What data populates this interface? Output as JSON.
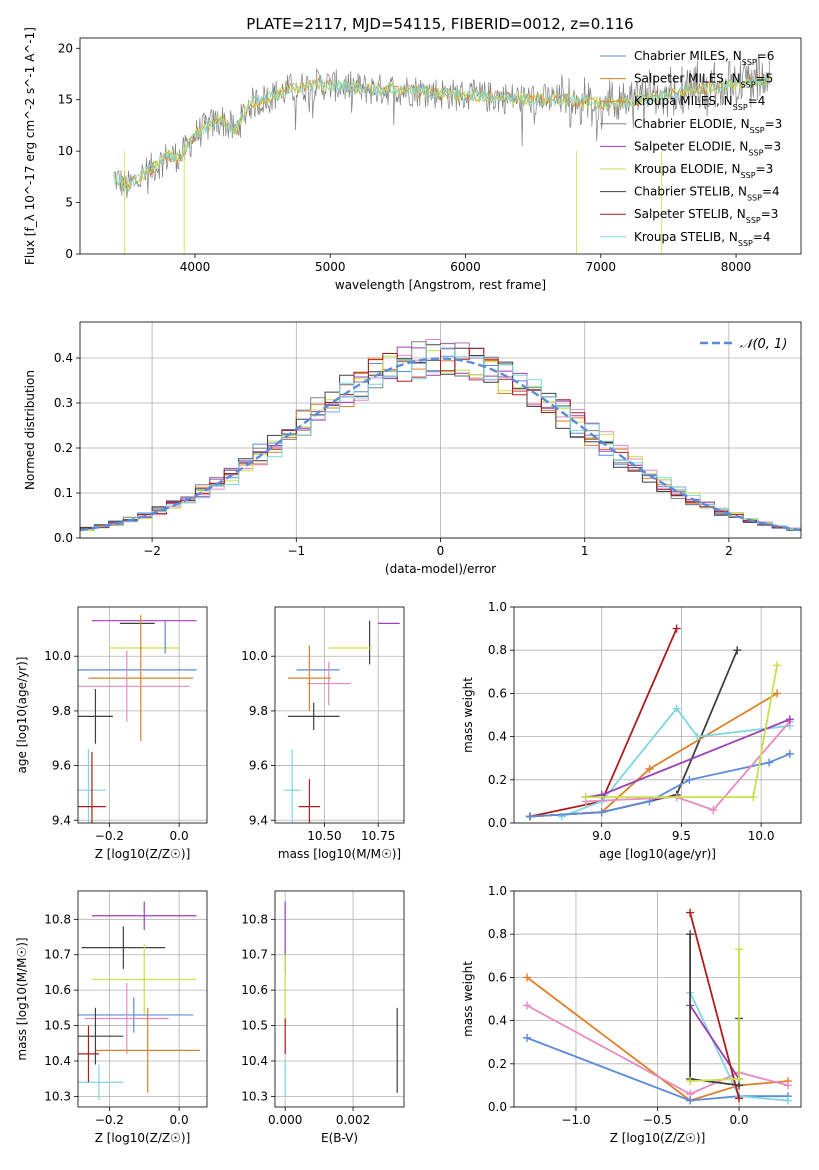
{
  "figure_title": "PLATE=2117, MJD=54115, FIBERID=0012, z=0.116",
  "series_legend": [
    {
      "label": "Chabrier MILES, N_SSP=6",
      "color": "#5b8bd9"
    },
    {
      "label": "Salpeter MILES, N_SSP=5",
      "color": "#e07f2a"
    },
    {
      "label": "Kroupa MILES, N_SSP=4",
      "color": "#e07f2a"
    },
    {
      "label": "Chabrier ELODIE, N_SSP=3",
      "color": "#808080"
    },
    {
      "label": "Salpeter ELODIE, N_SSP=3",
      "color": "#9b3fb6"
    },
    {
      "label": "Kroupa ELODIE, N_SSP=3",
      "color": "#c8e04a"
    },
    {
      "label": "Chabrier STELIB, N_SSP=4",
      "color": "#404040"
    },
    {
      "label": "Salpeter STELIB, N_SSP=3",
      "color": "#b01c1c"
    },
    {
      "label": "Kroupa STELIB, N_SSP=4",
      "color": "#7ed6e0"
    }
  ],
  "chart_data": [
    {
      "id": "spectrum",
      "type": "line",
      "title": "PLATE=2117, MJD=54115, FIBERID=0012, z=0.116",
      "xlabel": "wavelength [Angstrom, rest frame]",
      "ylabel": "Flux [f_λ 10^-17 erg cm^-2 s^-1 A^-1]",
      "xlim": [
        3150,
        8480
      ],
      "ylim": [
        0,
        21
      ],
      "xticks": [
        "4000",
        "5000",
        "6000",
        "7000",
        "8000"
      ],
      "yticks": [
        "0",
        "5",
        "10",
        "15",
        "20"
      ],
      "grid": false,
      "legend": "top-right",
      "continuum": {
        "x": [
          3400,
          3500,
          3600,
          3700,
          3800,
          3900,
          4000,
          4100,
          4200,
          4300,
          4400,
          4500,
          4700,
          4900,
          5100,
          5300,
          5500,
          5700,
          5900,
          6100,
          6300,
          6500,
          6700,
          6900,
          7100,
          7300,
          7500,
          7700,
          7900,
          8100,
          8250
        ],
        "y": [
          7.5,
          6.5,
          7.5,
          8.5,
          9.5,
          9.5,
          11.5,
          12.5,
          13.0,
          12.0,
          14.5,
          15.0,
          16.0,
          16.5,
          16.3,
          16.0,
          16.0,
          15.8,
          15.5,
          15.3,
          15.2,
          15.0,
          15.0,
          14.8,
          14.5,
          15.0,
          15.5,
          16.0,
          16.3,
          16.8,
          17.0
        ]
      }
    },
    {
      "id": "residual-hist",
      "type": "histogram",
      "xlabel": "(data-model)/error",
      "ylabel": "Normed distribution",
      "xlim": [
        -2.5,
        2.5
      ],
      "ylim": [
        0,
        0.48
      ],
      "xticks": [
        "−2",
        "−1",
        "0",
        "1",
        "2"
      ],
      "yticks": [
        "0.0",
        "0.1",
        "0.2",
        "0.3",
        "0.4"
      ],
      "grid": true,
      "legend_label": "𝒩(0, 1)",
      "legend": "top-right",
      "bin_width": 0.1,
      "gaussian": {
        "mean": 0,
        "sigma": 1
      }
    },
    {
      "id": "age-vs-Z",
      "type": "errorbar",
      "xlabel": "Z [log10(Z/Z☉)]",
      "ylabel": "age  [log10(age/yr)]",
      "xlim": [
        -0.29,
        0.08
      ],
      "ylim": [
        9.39,
        10.18
      ],
      "xticks": [
        "−0.2",
        "0.0"
      ],
      "yticks": [
        "9.4",
        "9.6",
        "9.8",
        "10.0"
      ],
      "grid": true,
      "points": [
        {
          "x": -0.1,
          "y": 10.13,
          "xerr": 0.15,
          "yerr": 0.0,
          "c": "#9b3fb6"
        },
        {
          "x": -0.12,
          "y": 10.12,
          "xerr": 0.05,
          "yerr": 0.0,
          "c": "#404040"
        },
        {
          "x": -0.1,
          "y": 10.03,
          "xerr": 0.1,
          "yerr": 0.0,
          "c": "#c8e04a"
        },
        {
          "x": -0.15,
          "y": 9.95,
          "xerr": 0.2,
          "yerr": 0.0,
          "c": "#5b8bd9"
        },
        {
          "x": -0.04,
          "y": 10.07,
          "xerr": 0.0,
          "yerr": 0.06,
          "c": "#5b8bd9"
        },
        {
          "x": -0.11,
          "y": 9.92,
          "xerr": 0.15,
          "yerr": 0.23,
          "c": "#e07f2a"
        },
        {
          "x": -0.15,
          "y": 9.89,
          "xerr": 0.18,
          "yerr": 0.13,
          "c": "#e58ac2"
        },
        {
          "x": -0.24,
          "y": 9.78,
          "xerr": 0.05,
          "yerr": 0.1,
          "c": "#404040"
        },
        {
          "x": -0.26,
          "y": 9.51,
          "xerr": 0.05,
          "yerr": 0.15,
          "c": "#7ed6e0"
        },
        {
          "x": -0.25,
          "y": 9.45,
          "xerr": 0.04,
          "yerr": 0.2,
          "c": "#b01c1c"
        }
      ]
    },
    {
      "id": "age-vs-mass",
      "type": "errorbar",
      "xlabel": "mass [log10(M/M☉)]",
      "ylabel": "",
      "xlim": [
        10.27,
        10.87
      ],
      "ylim": [
        9.39,
        10.18
      ],
      "xticks": [
        "10.50",
        "10.75"
      ],
      "yticks": [
        "9.4",
        "9.6",
        "9.8",
        "10.0"
      ],
      "grid": true,
      "points": [
        {
          "x": 10.8,
          "y": 10.12,
          "xerr": 0.05,
          "yerr": 0.0,
          "c": "#9b3fb6"
        },
        {
          "x": 10.71,
          "y": 10.05,
          "xerr": 0.0,
          "yerr": 0.08,
          "c": "#404040"
        },
        {
          "x": 10.62,
          "y": 10.03,
          "xerr": 0.1,
          "yerr": 0.0,
          "c": "#c8e04a"
        },
        {
          "x": 10.47,
          "y": 9.95,
          "xerr": 0.1,
          "yerr": 0.0,
          "c": "#5b8bd9"
        },
        {
          "x": 10.52,
          "y": 9.9,
          "xerr": 0.1,
          "yerr": 0.08,
          "c": "#e58ac2"
        },
        {
          "x": 10.43,
          "y": 9.92,
          "xerr": 0.1,
          "yerr": 0.12,
          "c": "#e07f2a"
        },
        {
          "x": 10.45,
          "y": 9.78,
          "xerr": 0.12,
          "yerr": 0.05,
          "c": "#404040"
        },
        {
          "x": 10.35,
          "y": 9.51,
          "xerr": 0.04,
          "yerr": 0.15,
          "c": "#7ed6e0"
        },
        {
          "x": 10.43,
          "y": 9.45,
          "xerr": 0.05,
          "yerr": 0.1,
          "c": "#b01c1c"
        }
      ]
    },
    {
      "id": "mass-weight-vs-age",
      "type": "line",
      "xlabel": "age  [log10(age/yr)]",
      "ylabel": "mass weight",
      "xlim": [
        8.45,
        10.25
      ],
      "ylim": [
        0,
        1
      ],
      "xticks": [
        "9.0",
        "9.5",
        "10.0"
      ],
      "yticks": [
        "0.0",
        "0.2",
        "0.4",
        "0.6",
        "0.8",
        "1.0"
      ],
      "grid": true,
      "series": [
        {
          "x": [
            8.55,
            9.0,
            9.47
          ],
          "y": [
            0.03,
            0.1,
            0.9
          ],
          "c": "#b01c1c"
        },
        {
          "x": [
            8.55,
            9.0,
            9.47,
            9.85
          ],
          "y": [
            0.03,
            0.05,
            0.13,
            0.8
          ],
          "c": "#404040"
        },
        {
          "x": [
            8.55,
            9.0,
            9.3,
            10.1
          ],
          "y": [
            0.03,
            0.05,
            0.25,
            0.6
          ],
          "c": "#e07f2a"
        },
        {
          "x": [
            8.75,
            9.0,
            9.47,
            9.6,
            10.18
          ],
          "y": [
            0.03,
            0.1,
            0.53,
            0.4,
            0.45
          ],
          "c": "#7ed6e0"
        },
        {
          "x": [
            8.55,
            9.0,
            9.3,
            9.55,
            10.05,
            10.18
          ],
          "y": [
            0.03,
            0.05,
            0.1,
            0.2,
            0.28,
            0.32
          ],
          "c": "#5b8bd9"
        },
        {
          "x": [
            8.9,
            9.47,
            9.7,
            10.18
          ],
          "y": [
            0.1,
            0.12,
            0.06,
            0.47
          ],
          "c": "#e58ac2"
        },
        {
          "x": [
            8.9,
            9.0,
            10.18
          ],
          "y": [
            0.12,
            0.13,
            0.48
          ],
          "c": "#9b3fb6"
        },
        {
          "x": [
            8.9,
            9.95,
            10.1
          ],
          "y": [
            0.12,
            0.12,
            0.73
          ],
          "c": "#c8e04a"
        }
      ]
    },
    {
      "id": "mass-vs-Z",
      "type": "errorbar",
      "xlabel": "Z [log10(Z/Z☉)]",
      "ylabel": "mass [log10(M/M☉)]",
      "xlim": [
        -0.29,
        0.08
      ],
      "ylim": [
        10.27,
        10.88
      ],
      "xticks": [
        "−0.2",
        "0.0"
      ],
      "yticks": [
        "10.3",
        "10.4",
        "10.5",
        "10.6",
        "10.7",
        "10.8"
      ],
      "grid": true,
      "points": [
        {
          "x": -0.1,
          "y": 10.81,
          "xerr": 0.15,
          "yerr": 0.04,
          "c": "#9b3fb6"
        },
        {
          "x": -0.16,
          "y": 10.72,
          "xerr": 0.12,
          "yerr": 0.06,
          "c": "#404040"
        },
        {
          "x": -0.1,
          "y": 10.63,
          "xerr": 0.15,
          "yerr": 0.1,
          "c": "#c8e04a"
        },
        {
          "x": -0.13,
          "y": 10.53,
          "xerr": 0.17,
          "yerr": 0.05,
          "c": "#5b8bd9"
        },
        {
          "x": -0.15,
          "y": 10.52,
          "xerr": 0.12,
          "yerr": 0.1,
          "c": "#e58ac2"
        },
        {
          "x": -0.09,
          "y": 10.43,
          "xerr": 0.15,
          "yerr": 0.12,
          "c": "#e07f2a"
        },
        {
          "x": -0.24,
          "y": 10.47,
          "xerr": 0.08,
          "yerr": 0.08,
          "c": "#404040"
        },
        {
          "x": -0.23,
          "y": 10.34,
          "xerr": 0.07,
          "yerr": 0.05,
          "c": "#7ed6e0"
        },
        {
          "x": -0.26,
          "y": 10.42,
          "xerr": 0.03,
          "yerr": 0.08,
          "c": "#b01c1c"
        }
      ]
    },
    {
      "id": "mass-vs-EBV",
      "type": "errorbar",
      "xlabel": "E(B-V)",
      "ylabel": "",
      "xlim": [
        -0.0003,
        0.0035
      ],
      "ylim": [
        10.27,
        10.88
      ],
      "xticks": [
        "0.000",
        "0.002"
      ],
      "yticks": [
        "10.3",
        "10.4",
        "10.5",
        "10.6",
        "10.7",
        "10.8"
      ],
      "grid": true,
      "points": [
        {
          "x": 0.0,
          "y": 10.75,
          "xerr": 0.0,
          "yerr": 0.1,
          "c": "#9b3fb6"
        },
        {
          "x": 0.0,
          "y": 10.6,
          "xerr": 0.0,
          "yerr": 0.1,
          "c": "#c8e04a"
        },
        {
          "x": 0.0,
          "y": 10.47,
          "xerr": 0.0,
          "yerr": 0.05,
          "c": "#b01c1c"
        },
        {
          "x": 0.0,
          "y": 10.35,
          "xerr": 0.0,
          "yerr": 0.05,
          "c": "#7ed6e0"
        },
        {
          "x": 0.0033,
          "y": 10.43,
          "xerr": 0.0,
          "yerr": 0.12,
          "c": "#404040"
        }
      ]
    },
    {
      "id": "mass-weight-vs-Z",
      "type": "line",
      "xlabel": "Z [log10(Z/Z☉)]",
      "ylabel": "mass weight",
      "xlim": [
        -1.38,
        0.38
      ],
      "ylim": [
        0,
        1
      ],
      "xticks": [
        "−1.0",
        "−0.5",
        "0.0"
      ],
      "yticks": [
        "0.0",
        "0.2",
        "0.4",
        "0.6",
        "0.8",
        "1.0"
      ],
      "grid": true,
      "series": [
        {
          "x": [
            -1.3,
            -0.3,
            0.0,
            0.3
          ],
          "y": [
            0.6,
            0.03,
            0.1,
            0.12
          ],
          "c": "#e07f2a"
        },
        {
          "x": [
            -1.3,
            -0.3,
            0.0,
            0.3
          ],
          "y": [
            0.47,
            0.06,
            0.16,
            0.1
          ],
          "c": "#e58ac2"
        },
        {
          "x": [
            -1.3,
            -0.3,
            0.0,
            0.3
          ],
          "y": [
            0.32,
            0.03,
            0.05,
            0.05
          ],
          "c": "#5b8bd9"
        },
        {
          "x": [
            -0.3,
            0.0,
            0.3
          ],
          "y": [
            0.53,
            0.05,
            0.03
          ],
          "c": "#7ed6e0"
        },
        {
          "x": [
            -0.3,
            0.0
          ],
          "y": [
            0.47,
            0.13
          ],
          "c": "#9b3fb6"
        },
        {
          "x": [
            -0.3,
            -0.3,
            0.0,
            0.0
          ],
          "y": [
            0.8,
            0.13,
            0.1,
            0.41
          ],
          "c": "#404040"
        },
        {
          "x": [
            -0.3,
            0.0
          ],
          "y": [
            0.9,
            0.04
          ],
          "c": "#b01c1c"
        },
        {
          "x": [
            -0.3,
            0.0,
            0.0
          ],
          "y": [
            0.12,
            0.13,
            0.73
          ],
          "c": "#c8e04a"
        }
      ]
    }
  ]
}
